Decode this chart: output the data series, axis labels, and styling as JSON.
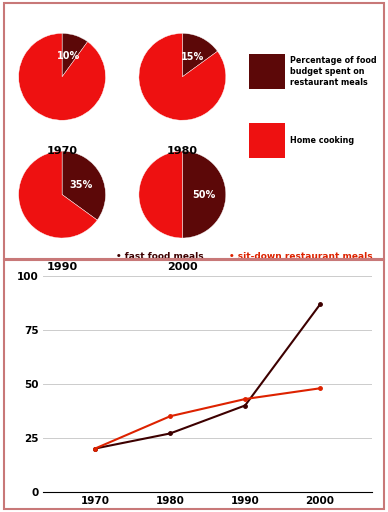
{
  "pie_years": [
    "1970",
    "1980",
    "1990",
    "2000"
  ],
  "pie_percentages": [
    10,
    15,
    35,
    50
  ],
  "pie_color_restaurant": "#5c0808",
  "pie_color_home": "#ee1111",
  "legend_label1": "Percentage of food\nbudget spent on\nrestaurant meals",
  "legend_label2": "Home cooking",
  "line_years": [
    1970,
    1980,
    1990,
    2000
  ],
  "fast_food": [
    20,
    27,
    40,
    87
  ],
  "sitdown": [
    20,
    35,
    43,
    48
  ],
  "fast_food_color": "#3d0000",
  "sitdown_color": "#dd2200",
  "line_legend1": "fast food meals",
  "line_legend2": "sit-down restaurant meals",
  "yticks": [
    0,
    25,
    50,
    75,
    100
  ],
  "ylim": [
    0,
    100
  ],
  "border_color": "#c87878",
  "top_bg": "#ffffff",
  "fig_bg": "#ffffff"
}
